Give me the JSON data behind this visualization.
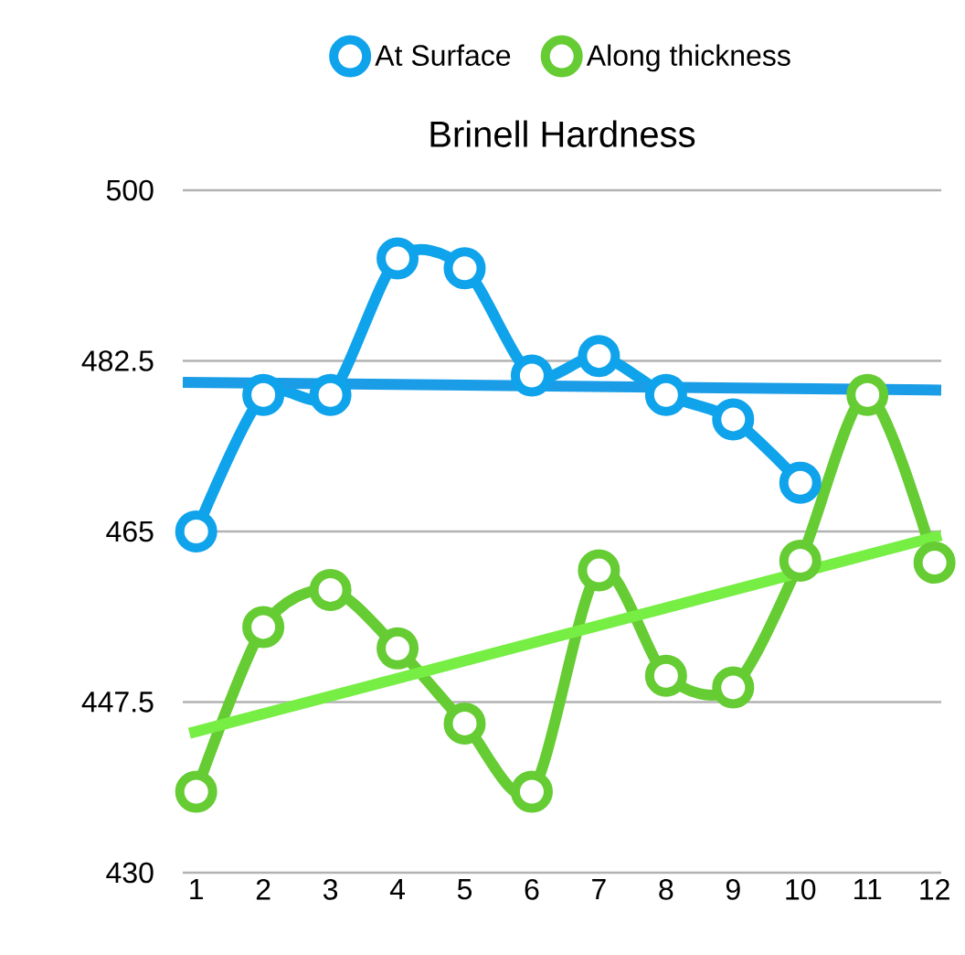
{
  "chart_data": {
    "type": "line",
    "title": "Brinell Hardness",
    "x": [
      1,
      2,
      3,
      4,
      5,
      6,
      7,
      8,
      9,
      10,
      11,
      12
    ],
    "xlim": [
      0.8,
      12.1
    ],
    "xticks": [
      1,
      2,
      3,
      4,
      5,
      6,
      7,
      8,
      9,
      10,
      11,
      12
    ],
    "ylim": [
      430,
      500
    ],
    "yticks": [
      430,
      447.5,
      465,
      482.5,
      500
    ],
    "grid": "y",
    "legend": "top",
    "marker": "circle",
    "line_style": "solid",
    "series": [
      {
        "name": "At Surface",
        "color": "#0fa3ec",
        "values": [
          465,
          479,
          479,
          493,
          492,
          481,
          483,
          479,
          476.5,
          470,
          null,
          null
        ]
      },
      {
        "name": "Along thickness",
        "color": "#66cc33",
        "values": [
          438.3,
          455.2,
          459,
          453,
          445.3,
          438.3,
          461,
          450.2,
          449,
          462,
          479,
          461.8
        ]
      },
      {
        "type": "line",
        "color": "#1a9de6",
        "marker": "none",
        "x": [
          0.8,
          12.1
        ],
        "values": [
          480.3,
          479.5
        ]
      },
      {
        "type": "line",
        "color": "#77ee44",
        "marker": "none",
        "x": [
          0.9,
          12.1
        ],
        "values": [
          444.3,
          464.6
        ]
      }
    ]
  }
}
